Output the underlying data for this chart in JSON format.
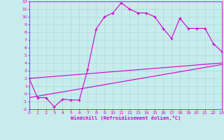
{
  "xlabel": "Windchill (Refroidissement éolien,°C)",
  "xlim": [
    0,
    23
  ],
  "ylim": [
    -2,
    12
  ],
  "xticks": [
    0,
    1,
    2,
    3,
    4,
    5,
    6,
    7,
    8,
    9,
    10,
    11,
    12,
    13,
    14,
    15,
    16,
    17,
    18,
    19,
    20,
    21,
    22,
    23
  ],
  "yticks": [
    -2,
    -1,
    0,
    1,
    2,
    3,
    4,
    5,
    6,
    7,
    8,
    9,
    10,
    11,
    12
  ],
  "bg_color": "#c8ecec",
  "line_color": "#cc00cc",
  "grid_color": "#b0dcdc",
  "line1_x": [
    0,
    1,
    2,
    3,
    4,
    5,
    6,
    7,
    8,
    9,
    10,
    11,
    12,
    13,
    14,
    15,
    16,
    17,
    18,
    19,
    20,
    21,
    22,
    23
  ],
  "line1_y": [
    2,
    -0.5,
    -0.5,
    -1.7,
    -0.7,
    -0.8,
    -0.8,
    3.2,
    8.4,
    10.0,
    10.5,
    11.8,
    11.0,
    10.5,
    10.5,
    10.0,
    8.5,
    7.2,
    9.8,
    8.5,
    8.5,
    8.5,
    6.5,
    5.5
  ],
  "line2_x": [
    0,
    23
  ],
  "line2_y": [
    2,
    4.0
  ],
  "line3_x": [
    0,
    23
  ],
  "line3_y": [
    -0.5,
    3.8
  ]
}
